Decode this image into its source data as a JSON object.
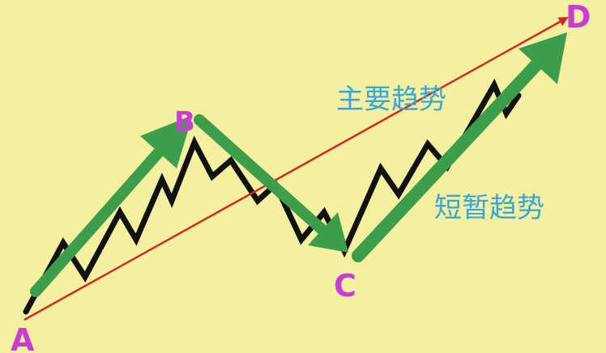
{
  "points": {
    "a": "A",
    "b": "B",
    "c": "C",
    "d": "D"
  },
  "labels": {
    "main_trend": "主要趋势",
    "short_trend": "短暂趋势"
  },
  "colors": {
    "background": "#f4f0a0",
    "price_line": "#111111",
    "main_trend_line": "#d02a1e",
    "short_trend_arrows": "#3c9e4a",
    "point_labels": "#c93cd6",
    "trend_labels": "#3aa6d8"
  }
}
